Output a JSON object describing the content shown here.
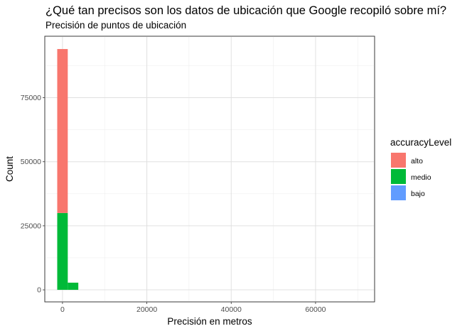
{
  "chart_data": {
    "type": "bar",
    "title": "¿Qué tan precisos son los datos de ubicación que Google recopiló sobre mí?",
    "subtitle": "Precisión de puntos de ubicación",
    "xlabel": "Precisión en metros",
    "ylabel": "Count",
    "xlim": [
      -4200,
      74000
    ],
    "ylim": [
      -4700,
      99000
    ],
    "x_ticks": [
      0,
      20000,
      40000,
      60000
    ],
    "y_ticks": [
      0,
      25000,
      50000,
      75000
    ],
    "x_tick_labels": [
      "0",
      "20000",
      "40000",
      "60000"
    ],
    "y_tick_labels": [
      "0",
      "25000",
      "50000",
      "75000"
    ],
    "bin_width": 2500,
    "stacked": true,
    "grid": true,
    "legend": {
      "title": "accuracyLevel",
      "placement": "right",
      "entries": [
        "alto",
        "medio",
        "bajo"
      ]
    },
    "series": [
      {
        "name": "alto",
        "color": "#F8766D",
        "bins": [
          {
            "x": 0,
            "value": 64000
          }
        ]
      },
      {
        "name": "medio",
        "color": "#00BA38",
        "bins": [
          {
            "x": 0,
            "value": 30000
          },
          {
            "x": 2500,
            "value": 2800
          }
        ]
      },
      {
        "name": "bajo",
        "color": "#619CFF",
        "bins": []
      }
    ]
  }
}
